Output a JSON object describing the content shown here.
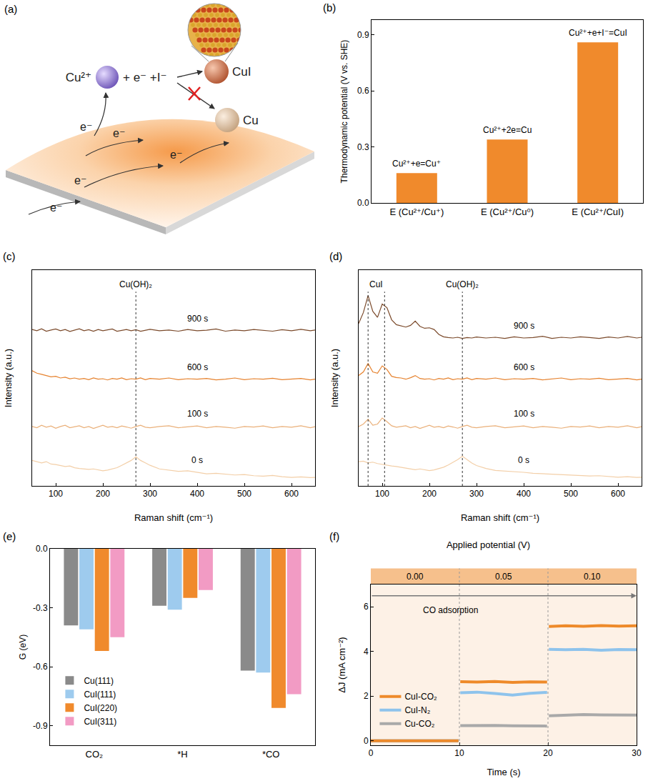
{
  "diagram": {
    "panel_label": "(a)",
    "ion": "Cu²⁺",
    "reactants": "+ e⁻ +I⁻",
    "product": "CuI",
    "blocked_product": "Cu",
    "electrons": [
      "e⁻",
      "e⁻",
      "e⁻",
      "e⁻",
      "e⁻"
    ]
  },
  "chart_data": [
    {
      "panel_label": "(b)",
      "type": "bar",
      "categories": [
        "E (Cu²⁺/Cu⁺)",
        "E (Cu²⁺/Cu⁰)",
        "E (Cu²⁺/CuI)"
      ],
      "values": [
        0.16,
        0.34,
        0.86
      ],
      "annotations": [
        "Cu²⁺+e=Cu⁺",
        "Cu²⁺+2e=Cu",
        "Cu²⁺+e+I⁻=CuI"
      ],
      "color": "#f08a2c",
      "y_label": "Thermodynamic potential (V vs. SHE)",
      "ylim": [
        0,
        0.98
      ],
      "yticks": [
        {
          "value": 0,
          "label": "0.0"
        },
        0.3,
        0.6,
        0.9
      ],
      "grid": false
    },
    {
      "panel_label": "(c)",
      "type": "line",
      "x_label": "Raman shift (cm⁻¹)",
      "y_label": "Intensity (a.u.)",
      "x": [
        50,
        60,
        70,
        80,
        90,
        100,
        110,
        120,
        130,
        140,
        150,
        160,
        170,
        180,
        190,
        200,
        210,
        220,
        230,
        240,
        250,
        260,
        270,
        280,
        290,
        300,
        320,
        340,
        360,
        380,
        400,
        420,
        440,
        460,
        480,
        500,
        520,
        540,
        560,
        580,
        600,
        620,
        640,
        650
      ],
      "series": [
        {
          "name": "0 s",
          "color": "#f3cfa8",
          "values": [
            1.55,
            1.5,
            1.45,
            1.5,
            1.4,
            1.38,
            1.35,
            1.3,
            1.32,
            1.25,
            1.22,
            1.2,
            1.18,
            1.2,
            1.15,
            1.12,
            1.15,
            1.2,
            1.25,
            1.35,
            1.45,
            1.55,
            1.7,
            1.55,
            1.45,
            1.35,
            1.2,
            1.15,
            1.1,
            1.12,
            1.05,
            1.0,
            1.02,
            0.98,
            0.95,
            0.97,
            0.92,
            0.9,
            0.93,
            0.88,
            0.85,
            0.87,
            0.84,
            0.85
          ]
        },
        {
          "name": "100 s",
          "color": "#eab07a",
          "values": [
            2.95,
            2.9,
            3.0,
            2.92,
            2.97,
            2.88,
            2.95,
            3.0,
            2.9,
            2.93,
            2.98,
            2.9,
            2.95,
            2.87,
            2.93,
            3.0,
            2.92,
            2.95,
            2.9,
            2.97,
            2.93,
            2.88,
            2.95,
            3.0,
            2.92,
            2.9,
            2.95,
            2.98,
            2.9,
            2.93,
            2.97,
            2.9,
            2.95,
            2.92,
            2.88,
            2.95,
            2.93,
            2.97,
            2.9,
            2.95,
            2.92,
            2.98,
            2.9,
            2.94
          ]
        },
        {
          "name": "600 s",
          "color": "#e6822e",
          "values": [
            5.25,
            5.15,
            5.1,
            5.05,
            5.0,
            5.02,
            4.95,
            4.98,
            4.92,
            4.95,
            4.9,
            4.93,
            4.88,
            4.95,
            4.9,
            4.92,
            4.87,
            4.93,
            4.9,
            4.95,
            4.88,
            4.92,
            4.9,
            4.95,
            4.88,
            4.93,
            4.9,
            4.95,
            4.88,
            4.92,
            4.9,
            4.93,
            4.87,
            4.9,
            4.95,
            4.88,
            4.92,
            4.9,
            4.94,
            4.88,
            4.9,
            4.93,
            4.87,
            4.9
          ]
        },
        {
          "name": "900 s",
          "color": "#7b4a2b",
          "values": [
            6.95,
            6.9,
            6.98,
            6.88,
            6.93,
            6.97,
            6.9,
            6.95,
            6.87,
            6.92,
            6.98,
            6.9,
            6.94,
            6.88,
            6.95,
            6.9,
            6.93,
            6.97,
            6.88,
            6.92,
            6.95,
            6.9,
            6.94,
            6.88,
            6.92,
            6.96,
            6.9,
            6.93,
            6.88,
            6.95,
            6.9,
            6.92,
            6.97,
            6.88,
            6.93,
            6.9,
            6.95,
            6.92,
            6.88,
            6.94,
            6.9,
            6.96,
            6.9,
            6.93
          ]
        }
      ],
      "reference_lines": [
        {
          "x": [
            270
          ],
          "label": "Cu(OH)₂"
        }
      ],
      "xlim": [
        50,
        650
      ],
      "xticks": [
        100,
        200,
        300,
        400,
        500,
        600
      ],
      "ylim": [
        0.5,
        9.4
      ],
      "tick_labels": "x",
      "grid": false
    },
    {
      "panel_label": "(d)",
      "type": "line",
      "x_label": "Raman shift (cm⁻¹)",
      "y_label": "Intensity (a.u.)",
      "x": [
        50,
        60,
        70,
        80,
        90,
        100,
        110,
        120,
        130,
        140,
        150,
        160,
        170,
        180,
        190,
        200,
        210,
        220,
        230,
        240,
        250,
        260,
        270,
        280,
        290,
        300,
        320,
        340,
        360,
        380,
        400,
        420,
        440,
        460,
        480,
        500,
        520,
        540,
        560,
        580,
        600,
        620,
        640,
        650
      ],
      "series": [
        {
          "name": "0 s",
          "color": "#f3cfa8",
          "values": [
            1.5,
            1.52,
            1.45,
            1.48,
            1.42,
            1.38,
            1.36,
            1.32,
            1.3,
            1.27,
            1.22,
            1.21,
            1.17,
            1.2,
            1.16,
            1.13,
            1.16,
            1.22,
            1.27,
            1.36,
            1.47,
            1.58,
            1.72,
            1.57,
            1.44,
            1.34,
            1.22,
            1.14,
            1.12,
            1.1,
            1.06,
            1.02,
            1.0,
            0.97,
            0.96,
            0.95,
            0.93,
            0.91,
            0.92,
            0.89,
            0.86,
            0.88,
            0.85,
            0.86
          ]
        },
        {
          "name": "100 s",
          "color": "#eab07a",
          "values": [
            2.95,
            3.05,
            3.25,
            3.0,
            3.05,
            3.3,
            3.15,
            2.98,
            2.92,
            2.95,
            2.98,
            2.9,
            2.95,
            2.87,
            2.93,
            3.0,
            2.92,
            2.95,
            2.9,
            2.97,
            2.93,
            2.88,
            2.95,
            3.0,
            2.92,
            2.9,
            2.95,
            2.98,
            2.9,
            2.93,
            2.97,
            2.9,
            2.95,
            2.92,
            2.88,
            2.95,
            2.93,
            2.97,
            2.9,
            2.95,
            2.92,
            2.98,
            2.9,
            2.94
          ]
        },
        {
          "name": "600 s",
          "color": "#e6822e",
          "values": [
            5.05,
            5.2,
            5.55,
            5.2,
            5.15,
            5.45,
            5.3,
            5.02,
            4.97,
            4.95,
            4.9,
            4.96,
            5.05,
            4.93,
            4.9,
            4.92,
            4.87,
            4.93,
            4.9,
            4.95,
            4.88,
            4.92,
            4.9,
            4.95,
            4.88,
            4.93,
            4.9,
            4.95,
            4.88,
            4.92,
            4.9,
            4.93,
            4.87,
            4.9,
            4.95,
            4.88,
            4.92,
            4.9,
            4.94,
            4.88,
            4.9,
            4.93,
            4.87,
            4.9
          ]
        },
        {
          "name": "900 s",
          "color": "#7b4a2b",
          "values": [
            7.2,
            7.65,
            8.35,
            7.7,
            7.45,
            8.0,
            7.85,
            7.35,
            7.15,
            7.1,
            7.05,
            7.12,
            7.3,
            7.08,
            7.0,
            7.02,
            6.95,
            6.75,
            6.65,
            6.62,
            6.6,
            6.63,
            6.58,
            6.62,
            6.6,
            6.64,
            6.6,
            6.63,
            6.58,
            6.65,
            6.6,
            6.62,
            6.67,
            6.58,
            6.63,
            6.6,
            6.65,
            6.62,
            6.58,
            6.64,
            6.6,
            6.66,
            6.6,
            6.63
          ]
        }
      ],
      "reference_lines": [
        {
          "x": [
            70,
            105
          ],
          "label": "CuI"
        },
        {
          "x": [
            270
          ],
          "label": "Cu(OH)₂"
        }
      ],
      "xlim": [
        50,
        650
      ],
      "xticks": [
        100,
        200,
        300,
        400,
        500,
        600
      ],
      "ylim": [
        0.5,
        9.4
      ],
      "tick_labels": "x",
      "grid": false
    },
    {
      "panel_label": "(e)",
      "type": "bar",
      "categories": [
        "CO₂",
        "*H",
        "*CO"
      ],
      "series": [
        {
          "name": "Cu(111)",
          "color": "#8a8a8a",
          "values": [
            -0.39,
            -0.29,
            -0.62
          ]
        },
        {
          "name": "CuI(111)",
          "color": "#9ecbee",
          "values": [
            -0.41,
            -0.31,
            -0.63
          ]
        },
        {
          "name": "CuI(220)",
          "color": "#f08a2c",
          "values": [
            -0.52,
            -0.25,
            -0.81
          ]
        },
        {
          "name": "CuI(311)",
          "color": "#f29bc4",
          "values": [
            -0.45,
            -0.21,
            -0.74
          ]
        }
      ],
      "y_label": "G (eV)",
      "ylim": [
        -1.0,
        0
      ],
      "yticks": [
        -0.9,
        -0.6,
        -0.3,
        {
          "value": 0,
          "label": "0.0"
        }
      ],
      "legend": "bottom left",
      "grid": false
    },
    {
      "panel_label": "(f)",
      "type": "line",
      "title": "Applied potential (V)",
      "stages": [
        {
          "from": 0,
          "to": 10,
          "label": "0.00"
        },
        {
          "from": 10,
          "to": 20,
          "label": "0.05"
        },
        {
          "from": 20,
          "to": 30,
          "label": "0.10"
        }
      ],
      "annotations": [
        "CO adsorption"
      ],
      "x_label": "Time (s)",
      "y_label": "ΔJ (mA cm⁻²)",
      "x": [
        0,
        2,
        4,
        6,
        8,
        9.9,
        10,
        10.1,
        12,
        14,
        16,
        18,
        19.9,
        20,
        20.1,
        22,
        24,
        26,
        28,
        30
      ],
      "series": [
        {
          "name": "CuI-CO₂",
          "color": "#ee8a2a",
          "values": [
            0,
            0,
            0,
            0,
            0,
            0,
            null,
            2.65,
            2.63,
            2.66,
            2.62,
            2.64,
            2.63,
            null,
            5.12,
            5.15,
            5.13,
            5.16,
            5.14,
            5.15
          ]
        },
        {
          "name": "CuI-N₂",
          "color": "#8ec3ec",
          "values": [
            0,
            0,
            0,
            0,
            0,
            0,
            null,
            2.15,
            2.18,
            2.12,
            2.05,
            2.13,
            2.17,
            null,
            4.1,
            4.08,
            4.1,
            4.06,
            4.09,
            4.08
          ]
        },
        {
          "name": "Cu-CO₂",
          "color": "#a9a9a9",
          "values": [
            0,
            0,
            0,
            0,
            0,
            0,
            null,
            0.68,
            0.7,
            0.69,
            0.67,
            0.68,
            0.66,
            null,
            1.12,
            1.15,
            1.18,
            1.16,
            1.14,
            1.15
          ]
        }
      ],
      "xlim": [
        0,
        30
      ],
      "xticks": [
        0,
        10,
        20,
        30
      ],
      "ylim": [
        -0.2,
        7
      ],
      "yticks": [
        0,
        2,
        4,
        6
      ],
      "legend": "bottom left",
      "grid": false
    }
  ]
}
